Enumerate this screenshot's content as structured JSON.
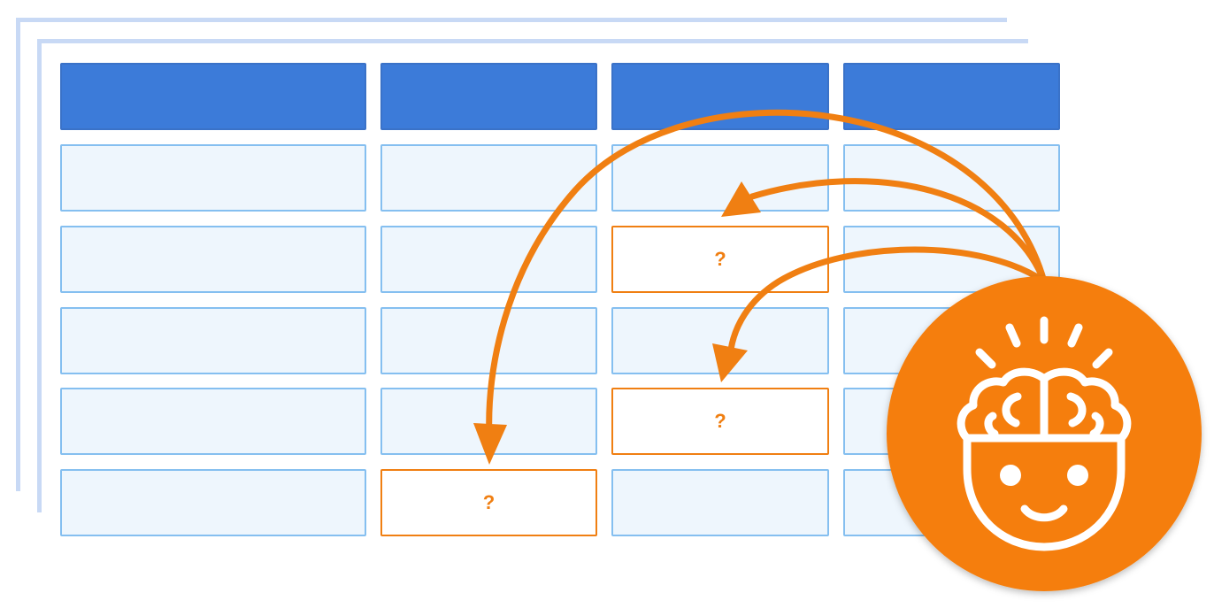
{
  "colors": {
    "header_fill": "#3c7bd9",
    "cell_fill": "#eef6fd",
    "cell_border": "#85bff0",
    "accent": "#f07f12",
    "stack_shadow": "#c8d9f5"
  },
  "table": {
    "columns": 4,
    "body_rows": 5,
    "missing_cells": [
      {
        "row": 2,
        "col": 3,
        "label": "?"
      },
      {
        "row": 4,
        "col": 3,
        "label": "?"
      },
      {
        "row": 5,
        "col": 2,
        "label": "?"
      }
    ]
  },
  "icons": {
    "badge": "brain-head-icon"
  }
}
